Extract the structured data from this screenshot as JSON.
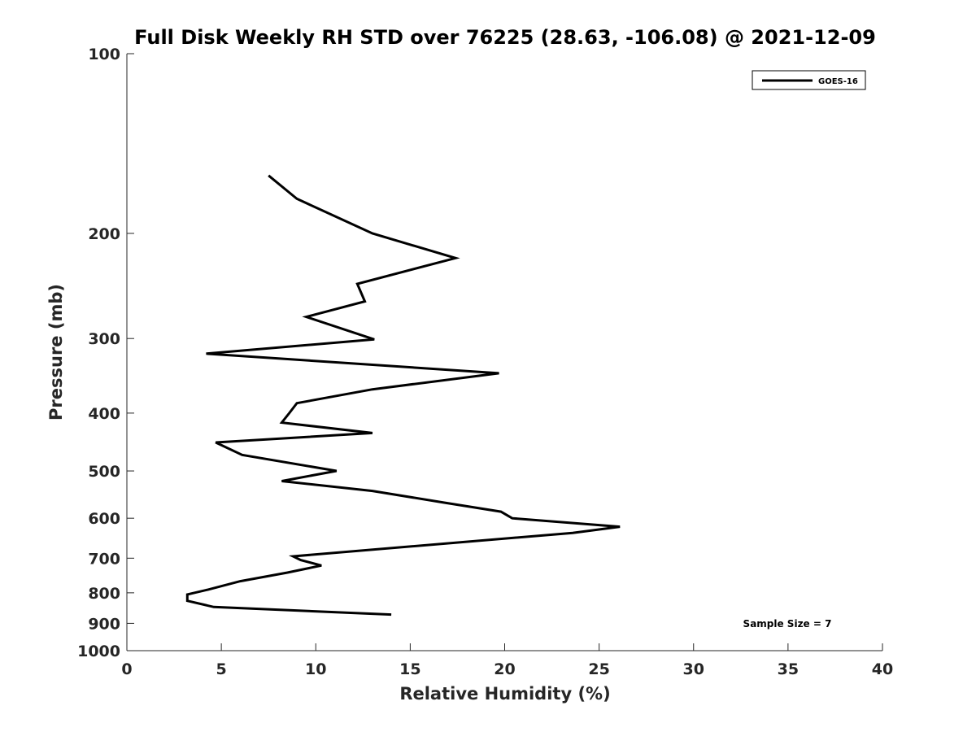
{
  "chart_data": {
    "type": "line",
    "title": "Full Disk Weekly RH STD over 76225 (28.63, -106.08) @ 2021-12-09",
    "xlabel": "Relative Humidity (%)",
    "ylabel": "Pressure (mb)",
    "xlim": [
      0,
      40
    ],
    "ylim": [
      100,
      1000
    ],
    "y_scale": "log",
    "y_reversed": true,
    "x_ticks": [
      0,
      5,
      10,
      15,
      20,
      25,
      30,
      35,
      40
    ],
    "x_tick_labels": [
      "0",
      "5",
      "10",
      "15",
      "20",
      "25",
      "30",
      "35",
      "40"
    ],
    "y_ticks": [
      100,
      200,
      300,
      400,
      500,
      600,
      700,
      800,
      900,
      1000
    ],
    "y_tick_labels": [
      "100",
      "200",
      "300",
      "400",
      "500",
      "600",
      "700",
      "800",
      "900",
      "1000"
    ],
    "grid": false,
    "legend_position": "top-right",
    "series": [
      {
        "name": "GOES-16",
        "color": "#000000",
        "points": [
          [
            7.5,
            160
          ],
          [
            9.0,
            175
          ],
          [
            13.0,
            200
          ],
          [
            17.4,
            220
          ],
          [
            12.2,
            243
          ],
          [
            12.6,
            260
          ],
          [
            9.5,
            276
          ],
          [
            13.1,
            301
          ],
          [
            4.2,
            318
          ],
          [
            19.7,
            343
          ],
          [
            13.0,
            365
          ],
          [
            9.0,
            385
          ],
          [
            8.6,
            400
          ],
          [
            8.2,
            415
          ],
          [
            13.0,
            432
          ],
          [
            4.7,
            448
          ],
          [
            6.1,
            470
          ],
          [
            11.1,
            500
          ],
          [
            8.2,
            520
          ],
          [
            13.0,
            540
          ],
          [
            16.8,
            565
          ],
          [
            19.8,
            585
          ],
          [
            20.4,
            600
          ],
          [
            26.1,
            620
          ],
          [
            23.6,
            635
          ],
          [
            8.8,
            695
          ],
          [
            9.2,
            705
          ],
          [
            10.3,
            720
          ],
          [
            8.5,
            740
          ],
          [
            6.0,
            765
          ],
          [
            4.3,
            790
          ],
          [
            3.2,
            805
          ],
          [
            3.2,
            825
          ],
          [
            4.6,
            845
          ],
          [
            14.0,
            870
          ]
        ]
      }
    ],
    "annotations": [
      "Sample Size = 7"
    ]
  }
}
